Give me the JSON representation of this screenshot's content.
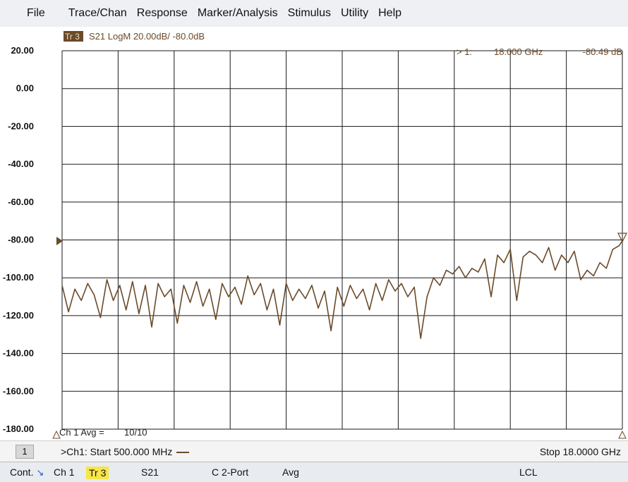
{
  "menubar": {
    "items": [
      "File",
      "Trace/Chan",
      "Response",
      "Marker/Analysis",
      "Stimulus",
      "Utility",
      "Help"
    ]
  },
  "trace_header": {
    "badge": "Tr 3",
    "text": "S21 LogM 20.00dB/ -80.0dB"
  },
  "marker": {
    "label": "> 1:",
    "frequency": "18.000 GHz",
    "value": "-80.49 dB"
  },
  "avg_readout": {
    "label": "Ch 1 Avg =",
    "value": "10/10"
  },
  "channel_line": {
    "channel_number": "1",
    "start": ">Ch1: Start  500.000 MHz",
    "stop": "Stop  18.0000 GHz"
  },
  "statusbar": {
    "cont": "Cont.",
    "channel": "Ch 1",
    "trace": "Tr 3",
    "parameter": "S21",
    "calibration": "C  2-Port",
    "average": "Avg",
    "remote": "LCL"
  },
  "colors": {
    "trace": "#6b4a2a",
    "marker": "#6b4a2a",
    "badge_bg": "#6b4a2a",
    "grid": "#000000",
    "highlight": "#f5e64b"
  },
  "chart_data": {
    "type": "line",
    "xlabel": "",
    "ylabel": "",
    "ylim": [
      -180,
      20
    ],
    "xlim": [
      0.5,
      18.0
    ],
    "y_ticks": [
      "20.00",
      "0.00",
      "-20.00",
      "-40.00",
      "-60.00",
      "-80.00",
      "-100.00",
      "-120.00",
      "-140.00",
      "-160.00",
      "-180.00"
    ],
    "reference_level": -80.0,
    "grid": true,
    "series": [
      {
        "x": [
          0.5,
          0.7,
          0.9,
          1.1,
          1.3,
          1.5,
          1.7,
          1.9,
          2.1,
          2.3,
          2.5,
          2.7,
          2.9,
          3.1,
          3.3,
          3.5,
          3.7,
          3.9,
          4.1,
          4.3,
          4.5,
          4.7,
          4.9,
          5.1,
          5.3,
          5.5,
          5.7,
          5.9,
          6.1,
          6.3,
          6.5,
          6.7,
          6.9,
          7.1,
          7.3,
          7.5,
          7.7,
          7.9,
          8.1,
          8.3,
          8.5,
          8.7,
          8.9,
          9.1,
          9.3,
          9.5,
          9.7,
          9.9,
          10.1,
          10.3,
          10.5,
          10.7,
          10.9,
          11.1,
          11.3,
          11.5,
          11.7,
          11.9,
          12.1,
          12.3,
          12.5,
          12.7,
          12.9,
          13.1,
          13.3,
          13.5,
          13.7,
          13.9,
          14.1,
          14.3,
          14.5,
          14.7,
          14.9,
          15.1,
          15.3,
          15.5,
          15.7,
          15.9,
          16.1,
          16.3,
          16.5,
          16.7,
          16.9,
          17.1,
          17.3,
          17.5,
          17.7,
          17.9,
          18.0
        ],
        "y": [
          -104,
          -118,
          -106,
          -112,
          -103,
          -109,
          -121,
          -101,
          -112,
          -104,
          -117,
          -102,
          -119,
          -104,
          -126,
          -103,
          -110,
          -106,
          -124,
          -104,
          -113,
          -102,
          -115,
          -106,
          -122,
          -103,
          -110,
          -105,
          -114,
          -99,
          -109,
          -103,
          -117,
          -106,
          -125,
          -103,
          -112,
          -106,
          -111,
          -104,
          -116,
          -107,
          -128,
          -105,
          -115,
          -104,
          -111,
          -106,
          -117,
          -103,
          -112,
          -101,
          -107,
          -103,
          -110,
          -105,
          -132,
          -110,
          -100,
          -104,
          -96,
          -98,
          -94,
          -100,
          -95,
          -97,
          -90,
          -110,
          -88,
          -92,
          -85,
          -112,
          -89,
          -86,
          -88,
          -92,
          -84,
          -96,
          -88,
          -92,
          -86,
          -101,
          -96,
          -99,
          -92,
          -95,
          -85,
          -83,
          -80.49
        ]
      }
    ]
  }
}
